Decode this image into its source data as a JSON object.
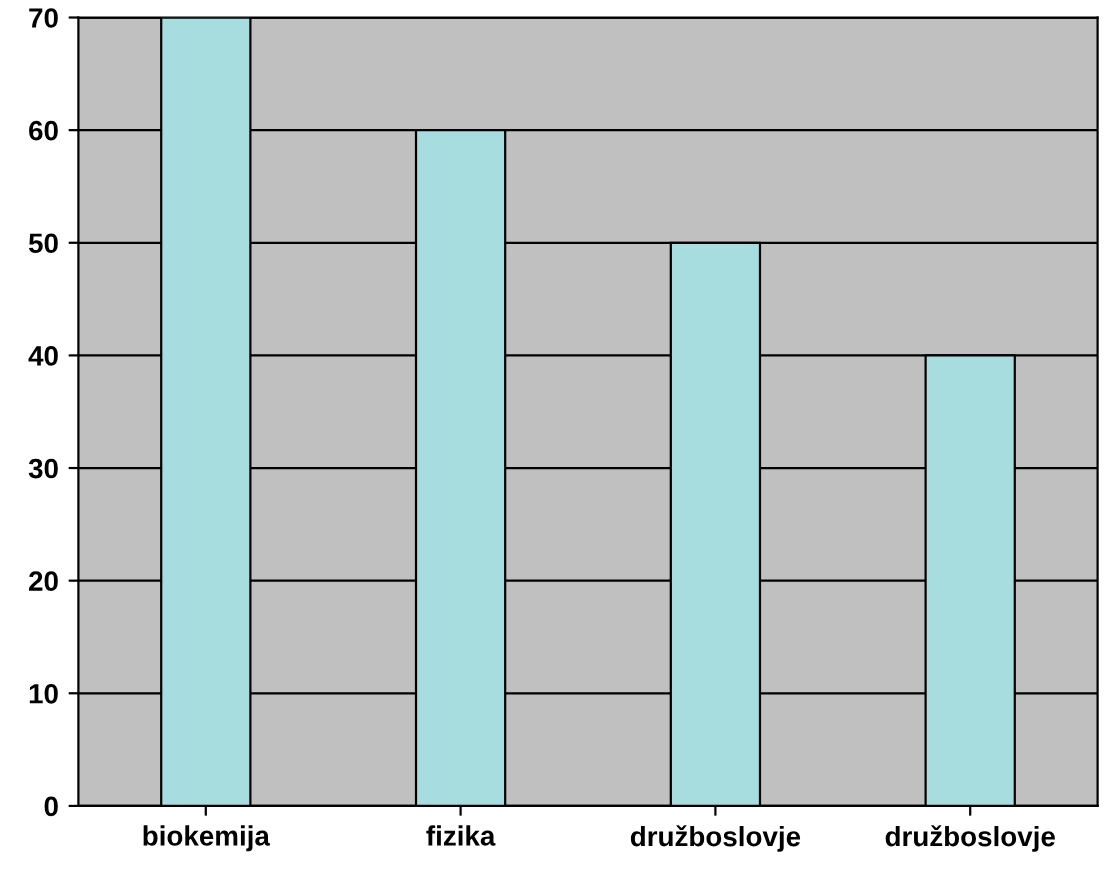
{
  "chart_data": {
    "type": "bar",
    "categories": [
      "biokemija",
      "fizika",
      "družboslovje",
      "družboslovje"
    ],
    "values": [
      70,
      60,
      50,
      40
    ],
    "color": "#a8dde0",
    "ylim": [
      0,
      70
    ],
    "yticks": [
      0,
      10,
      20,
      30,
      40,
      50,
      60,
      70
    ],
    "grid": "y"
  }
}
